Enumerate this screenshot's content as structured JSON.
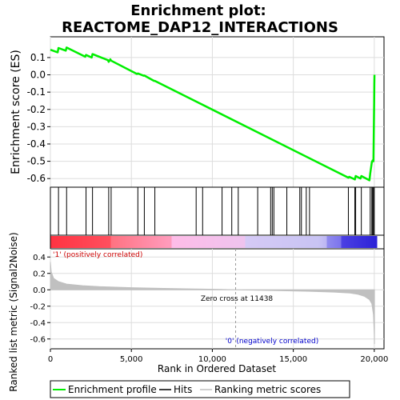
{
  "title": "Enrichment plot:",
  "subtitle": "REACTOME_DAP12_INTERACTIONS",
  "colors": {
    "enrichment_line": "#00ee00",
    "hits": "#000000",
    "metric_fill": "#c0c0c0",
    "axis": "#000000",
    "grid": "#dddddd",
    "pos_label": "#cc0000",
    "neg_label": "#0000cc",
    "gradient_stops": [
      "#ff2a3a",
      "#ff6a78",
      "#ffb6e4",
      "#d8c8f4",
      "#b8b8f0",
      "#5a4ee8",
      "#1a12d0"
    ]
  },
  "chart_data": [
    {
      "type": "line",
      "name": "enrichment-score-panel",
      "ylabel": "Enrichment score (ES)",
      "xlim": [
        0,
        20600
      ],
      "ylim": [
        -0.65,
        0.22
      ],
      "yticks": [
        0.1,
        0.0,
        -0.1,
        -0.2,
        -0.3,
        -0.4,
        -0.5,
        -0.6
      ],
      "ytick_labels": [
        "0.1",
        "0.0",
        "-0.1",
        "-0.2",
        "-0.3",
        "-0.4",
        "-0.5",
        "-0.6"
      ],
      "grid": true,
      "series": [
        {
          "name": "Enrichment profile",
          "x": [
            0,
            450,
            500,
            950,
            1000,
            2150,
            2200,
            2550,
            2600,
            3550,
            3600,
            3700,
            3750,
            5350,
            5400,
            5750,
            5800,
            6400,
            6450,
            18400,
            18450,
            18800,
            18850,
            19150,
            19200,
            19700,
            19750,
            19850,
            19900,
            19950,
            19970,
            19990,
            20000,
            20010
          ],
          "y": [
            0.145,
            0.13,
            0.155,
            0.14,
            0.158,
            0.105,
            0.115,
            0.1,
            0.12,
            0.085,
            0.075,
            0.09,
            0.082,
            0.005,
            0.008,
            -0.005,
            -0.004,
            -0.035,
            -0.035,
            -0.595,
            -0.59,
            -0.605,
            -0.585,
            -0.6,
            -0.585,
            -0.61,
            -0.57,
            -0.505,
            -0.495,
            -0.5,
            -0.35,
            -0.16,
            -0.05,
            0.0
          ]
        }
      ]
    },
    {
      "type": "scatter",
      "name": "hits-panel",
      "label": "Hits",
      "x": [
        500,
        1000,
        2200,
        2600,
        3600,
        3750,
        5400,
        5800,
        6450,
        9000,
        9400,
        10600,
        11200,
        11600,
        12800,
        13600,
        13700,
        13800,
        14600,
        15400,
        15500,
        15800,
        16000,
        18400,
        18800,
        18850,
        19200,
        19750,
        19850,
        19900,
        19950,
        20000
      ]
    },
    {
      "type": "heatmap",
      "name": "rank-color-bar",
      "label_pos": "'1' (positively correlated)",
      "label_neg": "'0' (negatively correlated)"
    },
    {
      "type": "area",
      "name": "ranked-metric-panel",
      "xlabel": "Rank in Ordered Dataset",
      "ylabel": "Ranked list metric (Signal2Noise)",
      "xlim": [
        0,
        20600
      ],
      "ylim": [
        -0.72,
        0.5
      ],
      "xticks": [
        0,
        5000,
        10000,
        15000,
        20000
      ],
      "xtick_labels": [
        "0",
        "5,000",
        "10,000",
        "15,000",
        "20,000"
      ],
      "yticks": [
        0.4,
        0.2,
        0.0,
        -0.2,
        -0.4,
        -0.6
      ],
      "ytick_labels": [
        "0.4",
        "0.2",
        "0.0",
        "-0.2",
        "-0.4",
        "-0.6"
      ],
      "zero_cross": 11438,
      "zero_cross_label": "Zero cross at 11438",
      "series": [
        {
          "name": "Ranking metric scores",
          "x": [
            0,
            50,
            200,
            500,
            1000,
            2000,
            3000,
            5000,
            7000,
            9000,
            10500,
            11438,
            12500,
            14000,
            16000,
            17500,
            18500,
            19000,
            19400,
            19700,
            19850,
            19950,
            20000,
            20010
          ],
          "y": [
            0.34,
            0.22,
            0.14,
            0.1,
            0.07,
            0.05,
            0.038,
            0.026,
            0.017,
            0.01,
            0.004,
            0.0,
            -0.004,
            -0.01,
            -0.018,
            -0.028,
            -0.04,
            -0.055,
            -0.08,
            -0.12,
            -0.17,
            -0.3,
            -0.55,
            -0.66
          ]
        }
      ]
    }
  ],
  "legend": {
    "items": [
      {
        "label": "Enrichment profile",
        "color": "#00ee00",
        "kind": "line"
      },
      {
        "label": "Hits",
        "color": "#000000",
        "kind": "line"
      },
      {
        "label": "Ranking metric scores",
        "color": "#c0c0c0",
        "kind": "line"
      }
    ]
  }
}
